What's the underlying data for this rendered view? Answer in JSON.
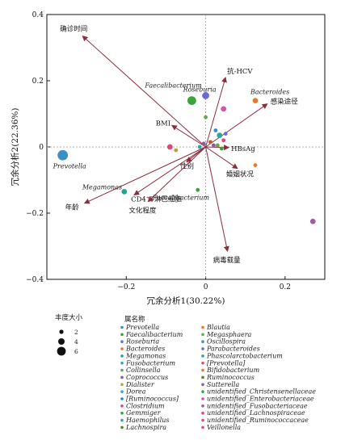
{
  "chart_data": {
    "type": "scatter",
    "xlabel": "冗余分析1(30.22%)",
    "ylabel": "冗余分析2(22.36%)",
    "xlim": [
      -0.4,
      0.3
    ],
    "ylim": [
      -0.4,
      0.4
    ],
    "x_ticks": [
      -0.2,
      0,
      0.2
    ],
    "y_ticks": [
      -0.4,
      -0.2,
      0,
      0.2,
      0.4
    ],
    "x_tick_labels": [
      "−0.2",
      "0",
      "0.2"
    ],
    "y_tick_labels": [
      "−0.4",
      "−0.2",
      "0",
      "0.2",
      "0.4"
    ],
    "grid": false,
    "arrow_color": "#8b2e3c",
    "arrows": [
      {
        "label": "确诊时间",
        "x": -0.31,
        "y": 0.335
      },
      {
        "label": "抗-HCV",
        "x": 0.05,
        "y": 0.21
      },
      {
        "label": "感染途径",
        "x": 0.155,
        "y": 0.13
      },
      {
        "label": "BMI",
        "x": -0.085,
        "y": 0.065
      },
      {
        "label": "HBsAg",
        "x": 0.058,
        "y": -0.002
      },
      {
        "label": "性别",
        "x": -0.048,
        "y": -0.045
      },
      {
        "label": "婚姻状况",
        "x": 0.08,
        "y": -0.065
      },
      {
        "label": "CD4⁺T淋巴细胞",
        "x": -0.18,
        "y": -0.145
      },
      {
        "label": "年龄",
        "x": -0.305,
        "y": -0.17
      },
      {
        "label": "文化程度",
        "x": -0.145,
        "y": -0.165
      },
      {
        "label": "病毒载量",
        "x": 0.055,
        "y": -0.315
      }
    ],
    "points": [
      {
        "genus": "Prevotella",
        "x": -0.36,
        "y": -0.025,
        "abundance": 6,
        "color": "#3a8fc4"
      },
      {
        "genus": "Roseburia",
        "x": 0.0,
        "y": 0.155,
        "abundance": 4,
        "color": "#6b6bd6"
      },
      {
        "genus": "Faecalibacterium",
        "x": -0.035,
        "y": 0.14,
        "abundance": 5,
        "color": "#3aa33a"
      },
      {
        "genus": "Bacteroides",
        "x": 0.125,
        "y": 0.14,
        "abundance": 3,
        "color": "#e57a2e"
      },
      {
        "genus": "",
        "x": 0.045,
        "y": 0.115,
        "abundance": 3,
        "color": "#d84fb0"
      },
      {
        "genus": "",
        "x": 0.0,
        "y": 0.09,
        "abundance": 2,
        "color": "#66a84a"
      },
      {
        "genus": "",
        "x": -0.09,
        "y": 0.0,
        "abundance": 3,
        "color": "#e0457d"
      },
      {
        "genus": "",
        "x": -0.015,
        "y": 0.0,
        "abundance": 2,
        "color": "#2fa3a3"
      },
      {
        "genus": "",
        "x": -0.005,
        "y": 0.01,
        "abundance": 2,
        "color": "#8a5aa3"
      },
      {
        "genus": "",
        "x": 0.012,
        "y": 0.015,
        "abundance": 2,
        "color": "#b85a2e"
      },
      {
        "genus": "",
        "x": 0.025,
        "y": 0.05,
        "abundance": 2,
        "color": "#3a8fc4"
      },
      {
        "genus": "",
        "x": 0.035,
        "y": 0.035,
        "abundance": 3,
        "color": "#2fa3a3"
      },
      {
        "genus": "",
        "x": 0.045,
        "y": 0.02,
        "abundance": 2,
        "color": "#e0457d"
      },
      {
        "genus": "",
        "x": 0.05,
        "y": 0.04,
        "abundance": 2,
        "color": "#6b6bd6"
      },
      {
        "genus": "",
        "x": 0.03,
        "y": 0.005,
        "abundance": 2,
        "color": "#66a84a"
      },
      {
        "genus": "",
        "x": 0.04,
        "y": -0.005,
        "abundance": 2,
        "color": "#3aa33a"
      },
      {
        "genus": "",
        "x": 0.02,
        "y": 0.005,
        "abundance": 2,
        "color": "#8a5aa3"
      },
      {
        "genus": "",
        "x": -0.075,
        "y": -0.01,
        "abundance": 2,
        "color": "#b8a03a"
      },
      {
        "genus": "",
        "x": 0.125,
        "y": -0.055,
        "abundance": 2,
        "color": "#e57a2e"
      },
      {
        "genus": "Megamonas",
        "x": -0.205,
        "y": -0.135,
        "abundance": 3,
        "color": "#1fa393"
      },
      {
        "genus": "Faecalibacterium",
        "x": -0.02,
        "y": -0.13,
        "abundance": 2,
        "color": "#3aa33a"
      },
      {
        "genus": "",
        "x": 0.27,
        "y": -0.225,
        "abundance": 3,
        "color": "#a35aa3"
      }
    ],
    "legend_title": "属名称",
    "legend": [
      {
        "name": "Prevotella",
        "color": "#3a8fc4"
      },
      {
        "name": "Faecalibacterium",
        "color": "#3aa33a"
      },
      {
        "name": "Roseburia",
        "color": "#6b6bd6"
      },
      {
        "name": "Bacteroides",
        "color": "#e57a2e"
      },
      {
        "name": "Megamonas",
        "color": "#1fa393"
      },
      {
        "name": "Fusobacterium",
        "color": "#2fa3a3"
      },
      {
        "name": "Collinsella",
        "color": "#66a84a"
      },
      {
        "name": "Coprococcus",
        "color": "#8a5aa3"
      },
      {
        "name": "Dialister",
        "color": "#b8a03a"
      },
      {
        "name": "Dorea",
        "color": "#3aa3d8"
      },
      {
        "name": "[Ruminococcus]",
        "color": "#2e7ad8"
      },
      {
        "name": "Clostridium",
        "color": "#e0457d"
      },
      {
        "name": "Gemmiger",
        "color": "#3aa33a"
      },
      {
        "name": "Haemophilus",
        "color": "#2fa3a3"
      },
      {
        "name": "Lachnospira",
        "color": "#4a8a2e"
      },
      {
        "name": "Blautia",
        "color": "#e57a2e"
      },
      {
        "name": "Megasphaera",
        "color": "#66a84a"
      },
      {
        "name": "Oscillospira",
        "color": "#3a8fc4"
      },
      {
        "name": "Parabacteroides",
        "color": "#6b6bd6"
      },
      {
        "name": "Phascolarctobacterium",
        "color": "#2fa3a3"
      },
      {
        "name": "[Prevotella]",
        "color": "#e0457d"
      },
      {
        "name": "Bifidobacterium",
        "color": "#e57a2e"
      },
      {
        "name": "Ruminococcus",
        "color": "#4a8a2e"
      },
      {
        "name": "Sutterella",
        "color": "#8a5aa3"
      },
      {
        "name": "unidentified_Christensenellaceae",
        "color": "#3aa33a"
      },
      {
        "name": "unidentified_Enterobacteriaceae",
        "color": "#d84fb0"
      },
      {
        "name": "unidentified_Fusobacteriaceae",
        "color": "#a35aa3"
      },
      {
        "name": "unidentified_Lachnospiraceae",
        "color": "#e0457d"
      },
      {
        "name": "unidentified_Ruminococcaceae",
        "color": "#e0457d"
      },
      {
        "name": "Veillonella",
        "color": "#d84f7a"
      }
    ],
    "size_legend_title": "丰度大小",
    "size_legend": [
      2,
      4,
      6
    ]
  }
}
